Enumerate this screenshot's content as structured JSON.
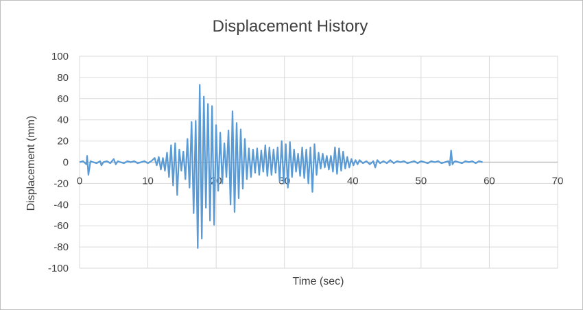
{
  "chart_data": {
    "type": "line",
    "title": "Displacement History",
    "xlabel": "Time (sec)",
    "ylabel": "Displacement (mm)",
    "xlim": [
      0,
      70
    ],
    "ylim": [
      -100,
      100
    ],
    "x_ticks": [
      0,
      10,
      20,
      30,
      40,
      50,
      60,
      70
    ],
    "y_ticks": [
      100,
      80,
      60,
      40,
      20,
      0,
      -20,
      -40,
      -60,
      -80,
      -100
    ],
    "grid": true,
    "legend": "none",
    "series_color": "#5b9bd5",
    "series": [
      {
        "x": [
          0.0,
          0.5,
          1.0,
          1.1,
          1.3,
          1.6,
          2.0,
          2.5,
          3.0,
          3.2,
          3.5,
          4.0,
          4.5,
          5.0,
          5.3,
          5.6,
          6.0,
          6.5,
          7.0,
          7.5,
          8.0,
          8.5,
          9.0,
          9.5,
          10.0,
          10.5,
          11.0,
          11.3,
          11.6,
          11.9,
          12.2,
          12.5,
          12.8,
          13.1,
          13.4,
          13.7,
          14.0,
          14.3,
          14.6,
          14.9,
          15.2,
          15.5,
          15.8,
          16.1,
          16.4,
          16.7,
          17.0,
          17.3,
          17.6,
          17.9,
          18.2,
          18.5,
          18.8,
          19.1,
          19.4,
          19.7,
          20.0,
          20.3,
          20.6,
          20.9,
          21.2,
          21.5,
          21.8,
          22.1,
          22.4,
          22.7,
          23.0,
          23.3,
          23.6,
          23.9,
          24.2,
          24.5,
          24.8,
          25.1,
          25.4,
          25.7,
          26.0,
          26.3,
          26.6,
          26.9,
          27.2,
          27.5,
          27.8,
          28.1,
          28.4,
          28.7,
          29.0,
          29.3,
          29.6,
          29.9,
          30.2,
          30.5,
          30.8,
          31.1,
          31.4,
          31.7,
          32.0,
          32.3,
          32.6,
          32.9,
          33.2,
          33.5,
          33.8,
          34.1,
          34.4,
          34.7,
          35.0,
          35.3,
          35.6,
          35.9,
          36.2,
          36.5,
          36.8,
          37.1,
          37.4,
          37.7,
          38.0,
          38.3,
          38.6,
          38.9,
          39.2,
          39.5,
          39.8,
          40.1,
          40.4,
          40.7,
          41.0,
          41.5,
          42.0,
          42.5,
          43.0,
          43.3,
          43.6,
          44.0,
          44.5,
          45.0,
          45.5,
          46.0,
          46.5,
          47.0,
          47.5,
          48.0,
          48.5,
          49.0,
          49.5,
          50.0,
          50.5,
          51.0,
          51.5,
          52.0,
          52.5,
          53.0,
          53.5,
          54.0,
          54.2,
          54.4,
          54.6,
          54.8,
          55.0,
          55.5,
          56.0,
          56.5,
          57.0,
          57.5,
          58.0,
          58.5,
          59.0
        ],
        "y": [
          0,
          1,
          -2,
          6,
          -12,
          1,
          0,
          -1,
          1,
          -3,
          0,
          1,
          -1,
          3,
          -2,
          1,
          0,
          -1,
          1,
          0,
          1,
          -1,
          0,
          1,
          -1,
          1,
          4,
          -3,
          5,
          -7,
          4,
          -8,
          9,
          -14,
          16,
          -22,
          18,
          -31,
          12,
          -8,
          10,
          -16,
          22,
          -24,
          38,
          -48,
          39,
          -81,
          73,
          -72,
          62,
          -43,
          55,
          -55,
          53,
          -59,
          35,
          -27,
          28,
          -20,
          18,
          -14,
          30,
          -40,
          48,
          -47,
          37,
          -34,
          31,
          -25,
          22,
          -16,
          13,
          -14,
          12,
          -10,
          13,
          -12,
          11,
          -9,
          16,
          -13,
          14,
          -12,
          12,
          -10,
          14,
          -18,
          20,
          -20,
          17,
          -24,
          19,
          -14,
          12,
          -9,
          8,
          -13,
          14,
          -15,
          12,
          -20,
          14,
          -28,
          17,
          -12,
          9,
          -6,
          8,
          -5,
          6,
          -7,
          6,
          -9,
          14,
          -11,
          13,
          -8,
          10,
          -6,
          5,
          -5,
          3,
          -3,
          2,
          -2,
          2,
          -1,
          1,
          -2,
          1,
          -5,
          2,
          -1,
          1,
          -1,
          2,
          -1,
          1,
          0,
          1,
          -1,
          0,
          1,
          -1,
          1,
          0,
          -1,
          1,
          0,
          1,
          -1,
          0,
          1,
          -3,
          11,
          -2,
          0,
          1,
          0,
          -1,
          1,
          0,
          1,
          -1,
          1,
          0
        ]
      }
    ]
  }
}
